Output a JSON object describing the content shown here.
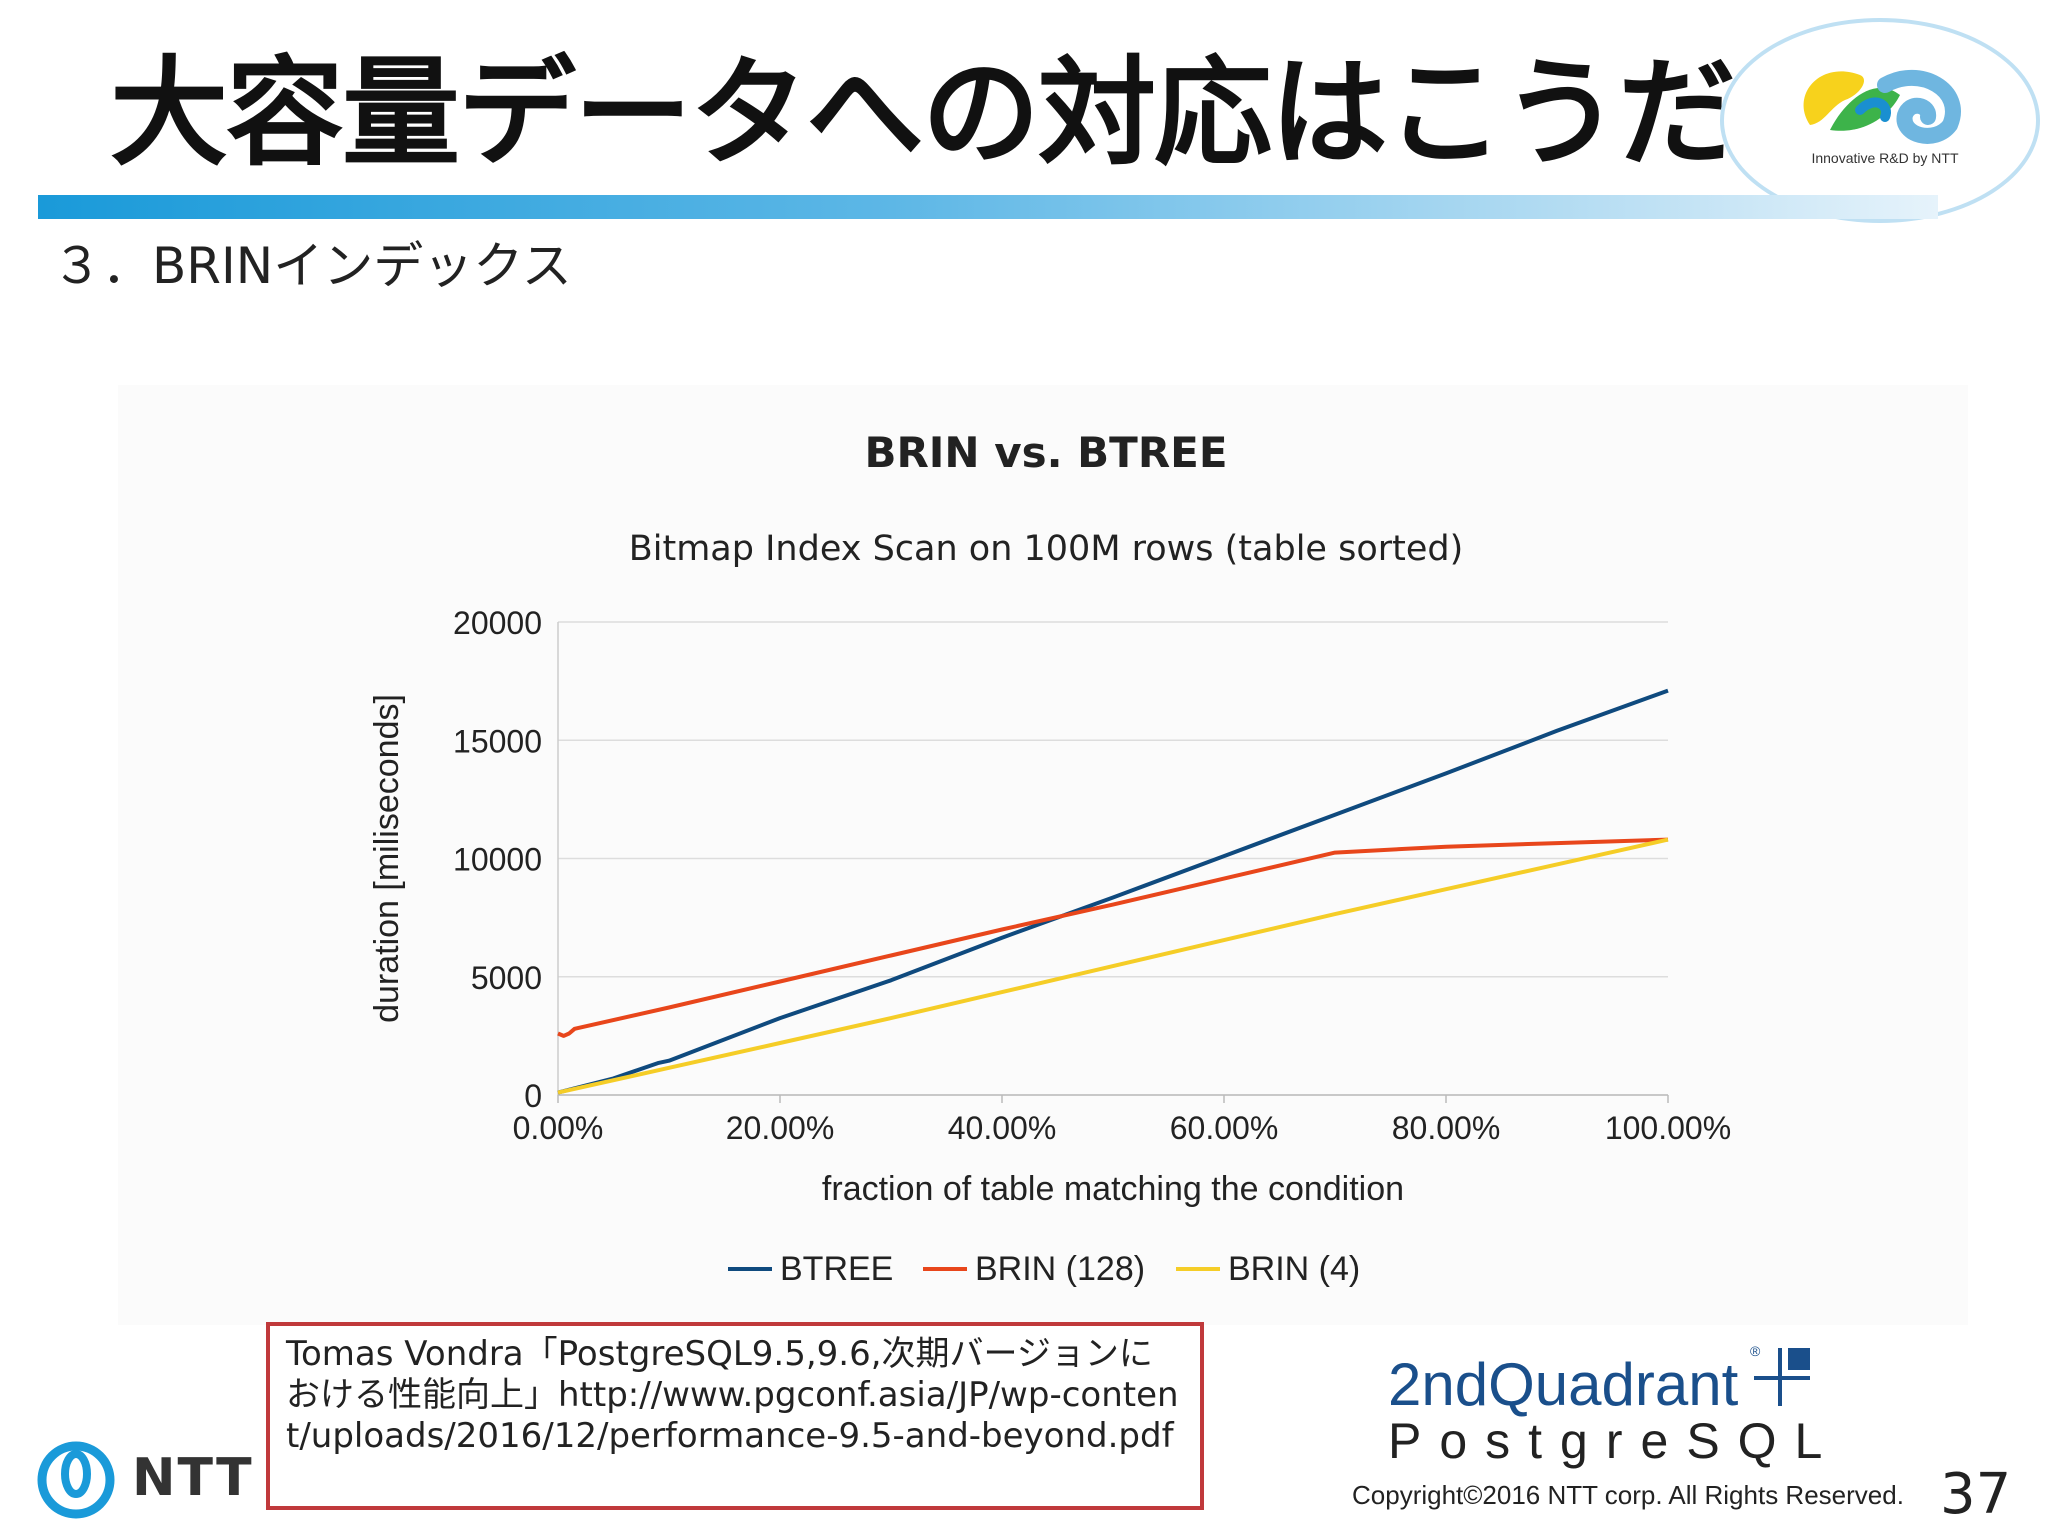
{
  "slide": {
    "title": "大容量データへの対応はこうだ！",
    "subtitle": "３．BRINインデックス",
    "logo_caption": "Innovative R&D by NTT",
    "reference": "Tomas Vondra「PostgreSQL9.5,9.6,次期バージョンにおける性能向上」http://www.pgconf.asia/JP/wp-content/uploads/2016/12/performance-9.5-and-beyond.pdf",
    "ntt_logo_text": "NTT",
    "quadrant_text": "2ndQuadrant",
    "postgresql_text": "PostgreSQL",
    "copyright": "Copyright©2016  NTT corp. All Rights Reserved.",
    "page_number": "37"
  },
  "colors": {
    "btree": "#0f4a7e",
    "brin128": "#e8461b",
    "brin4": "#f5cd27",
    "accent": "#1a9ad9",
    "ref_border": "#c0393b"
  },
  "chart_data": {
    "type": "line",
    "title": "BRIN vs. BTREE",
    "subtitle": "Bitmap Index Scan on 100M rows (table sorted)",
    "xlabel": "fraction of table matching the condition",
    "ylabel": "duration [miliseconds]",
    "xlim": [
      0,
      100
    ],
    "ylim": [
      0,
      20000
    ],
    "x_ticks": [
      "0.00%",
      "20.00%",
      "40.00%",
      "60.00%",
      "80.00%",
      "100.00%"
    ],
    "y_ticks": [
      "0",
      "5000",
      "10000",
      "15000",
      "20000"
    ],
    "legend_position": "bottom",
    "grid": true,
    "series": [
      {
        "name": "BTREE",
        "color": "#0f4a7e",
        "points": [
          [
            0,
            100
          ],
          [
            5,
            700
          ],
          [
            9,
            1350
          ],
          [
            10,
            1450
          ],
          [
            20,
            3250
          ],
          [
            30,
            4850
          ],
          [
            40,
            6650
          ],
          [
            50,
            8350
          ],
          [
            60,
            10100
          ],
          [
            70,
            11850
          ],
          [
            80,
            13600
          ],
          [
            90,
            15400
          ],
          [
            100,
            17100
          ]
        ]
      },
      {
        "name": "BRIN (128)",
        "color": "#e8461b",
        "points": [
          [
            0,
            2600
          ],
          [
            0.5,
            2500
          ],
          [
            1,
            2600
          ],
          [
            1.5,
            2800
          ],
          [
            10,
            3700
          ],
          [
            20,
            4800
          ],
          [
            30,
            5900
          ],
          [
            40,
            7000
          ],
          [
            50,
            8050
          ],
          [
            60,
            9150
          ],
          [
            70,
            10250
          ],
          [
            80,
            10500
          ],
          [
            90,
            10650
          ],
          [
            100,
            10800
          ]
        ]
      },
      {
        "name": "BRIN (4)",
        "color": "#f5cd27",
        "points": [
          [
            0,
            100
          ],
          [
            10,
            1150
          ],
          [
            20,
            2200
          ],
          [
            30,
            3250
          ],
          [
            40,
            4350
          ],
          [
            50,
            5450
          ],
          [
            60,
            6550
          ],
          [
            70,
            7650
          ],
          [
            80,
            8700
          ],
          [
            90,
            9750
          ],
          [
            100,
            10800
          ]
        ]
      }
    ]
  }
}
